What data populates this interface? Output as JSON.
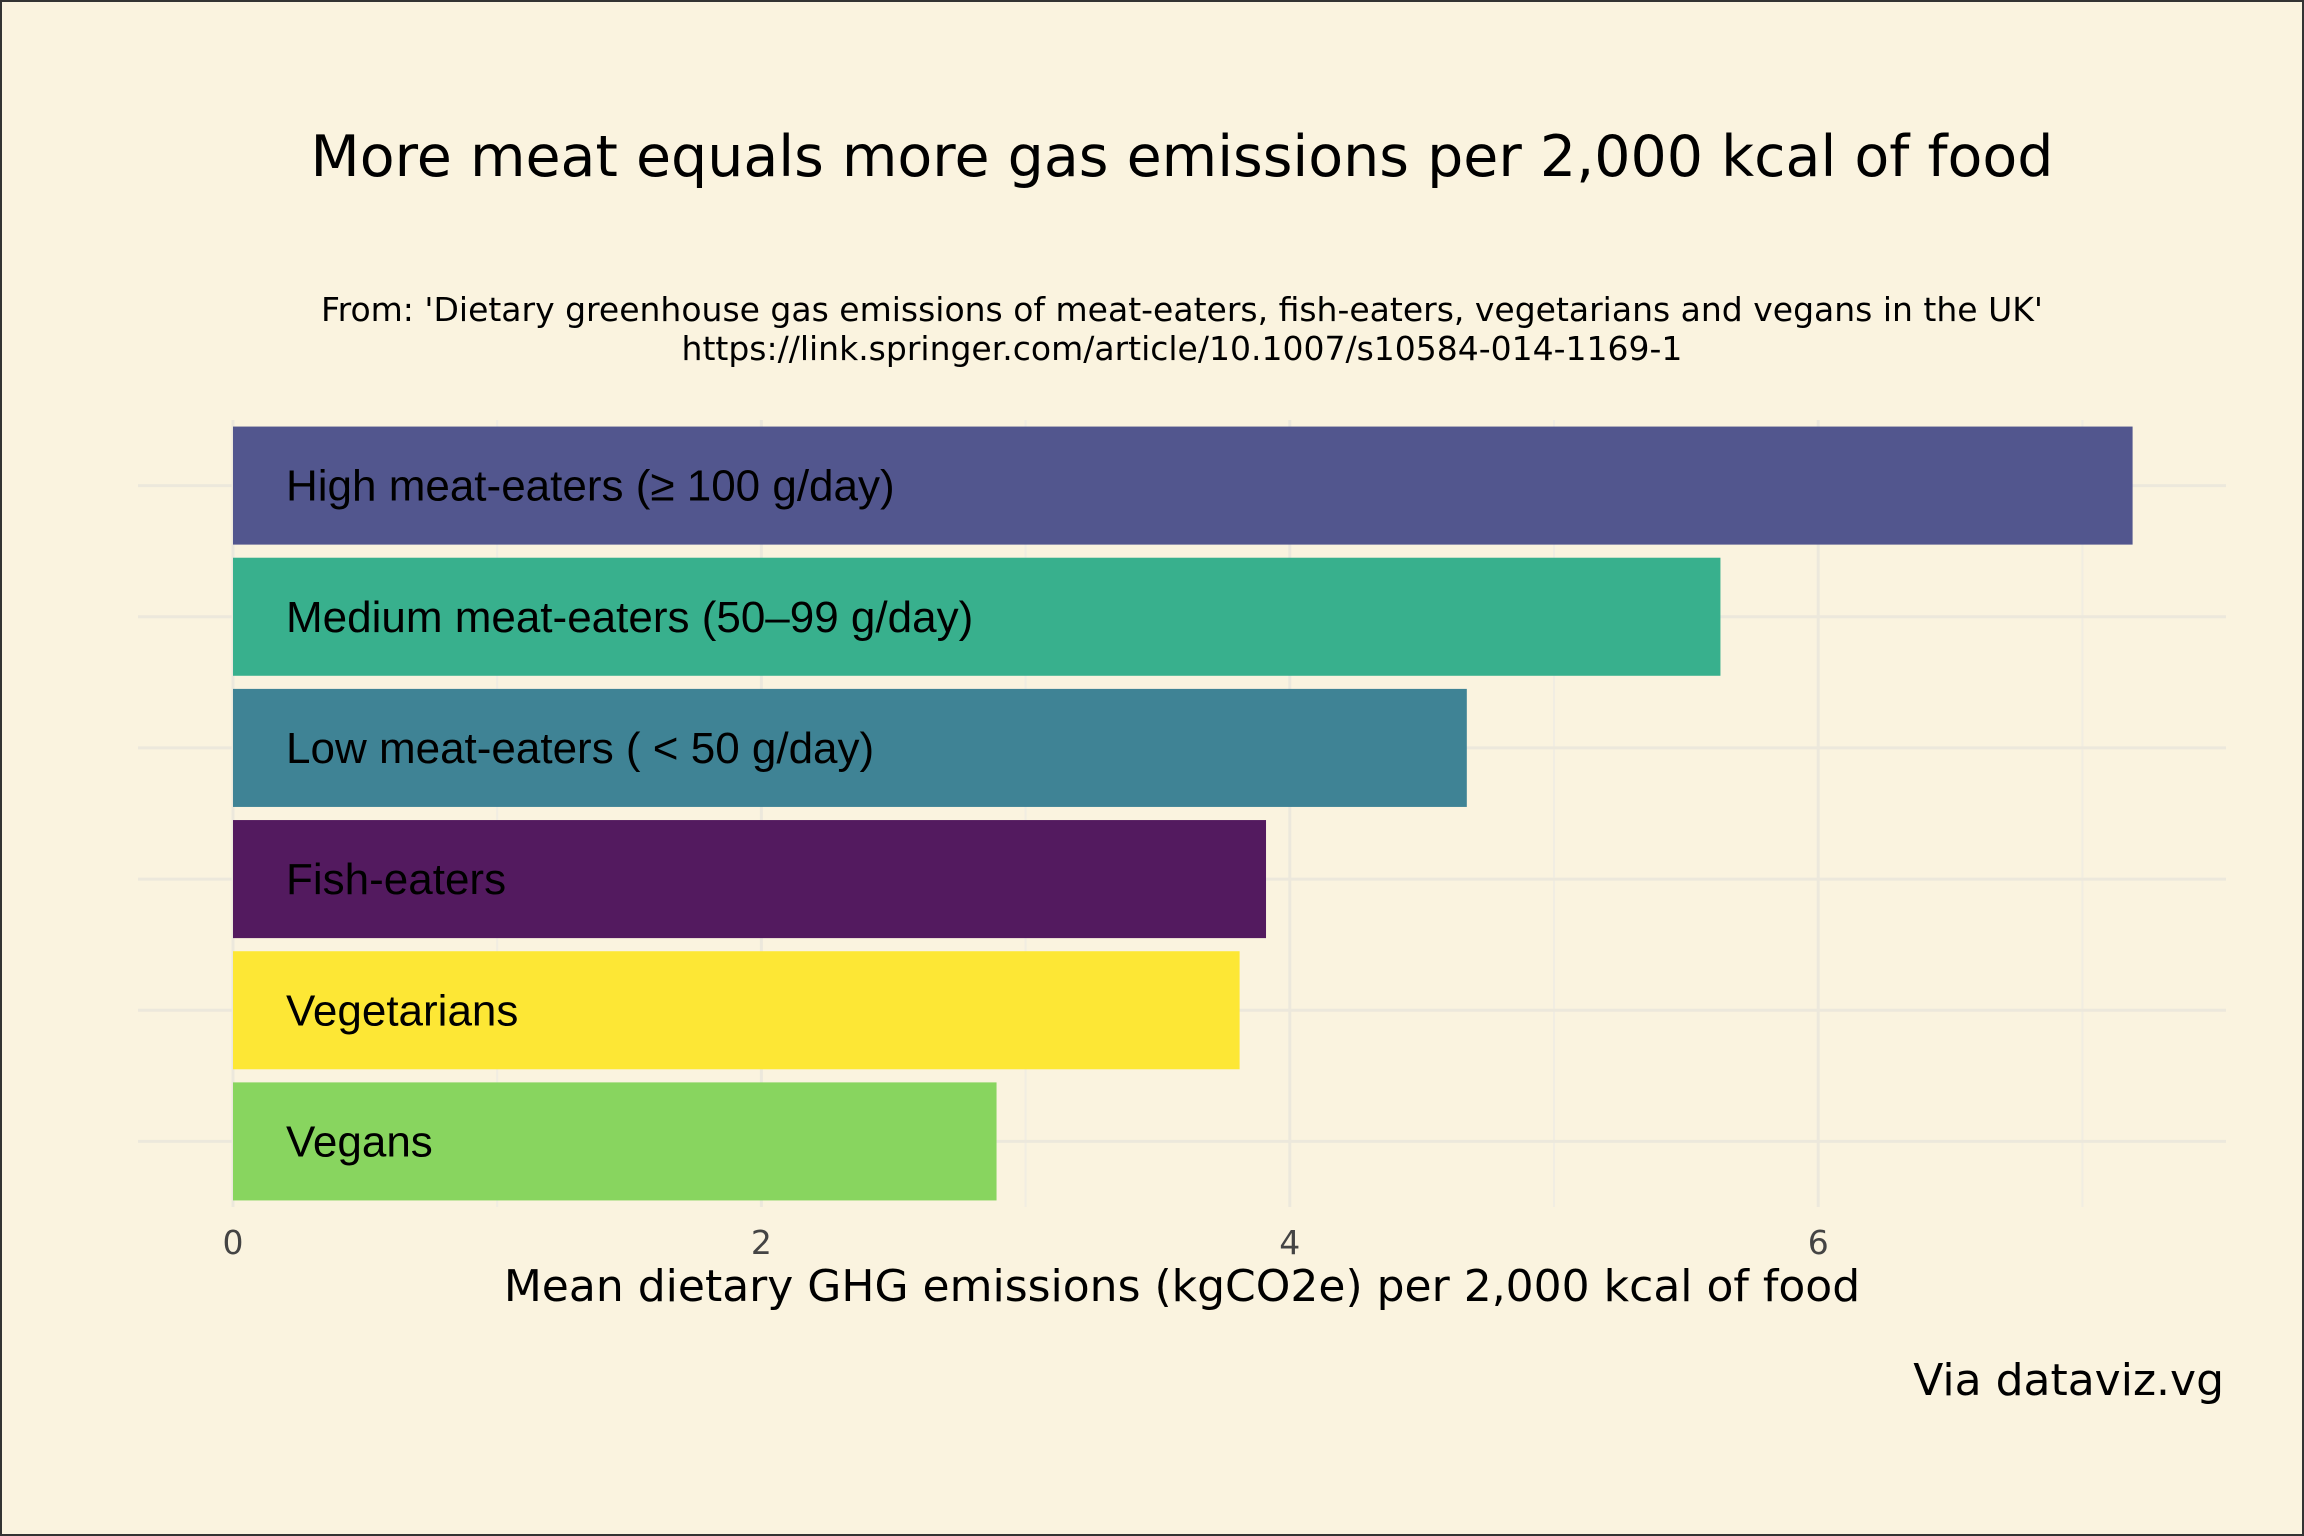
{
  "chart_data": {
    "type": "bar",
    "orientation": "horizontal",
    "title": "More meat equals more gas emissions per 2,000 kcal of food",
    "subtitle_lines": [
      "From: 'Dietary greenhouse gas emissions of meat-eaters, fish-eaters, vegetarians and vegans in the UK'",
      "https://link.springer.com/article/10.1007/s10584-014-1169-1"
    ],
    "xlabel": "Mean dietary GHG emissions (kgCO2e) per 2,000 kcal of food",
    "ylabel": "",
    "xlim": [
      0,
      7.5
    ],
    "x_ticks": [
      "0",
      "2",
      "4",
      "6"
    ],
    "grid": true,
    "legend": "none",
    "caption": "Via dataviz.vg",
    "categories": [
      "High meat-eaters (≥ 100 g/day)",
      "Medium meat-eaters (50–99 g/day)",
      "Low meat-eaters ( < 50 g/day)",
      "Fish-eaters",
      "Vegetarians",
      "Vegans"
    ],
    "values": [
      7.19,
      5.63,
      4.67,
      3.91,
      3.81,
      2.89
    ],
    "colors": [
      "#52568e",
      "#38b08d",
      "#3f8395",
      "#531a5f",
      "#fde735",
      "#88d55f"
    ]
  }
}
